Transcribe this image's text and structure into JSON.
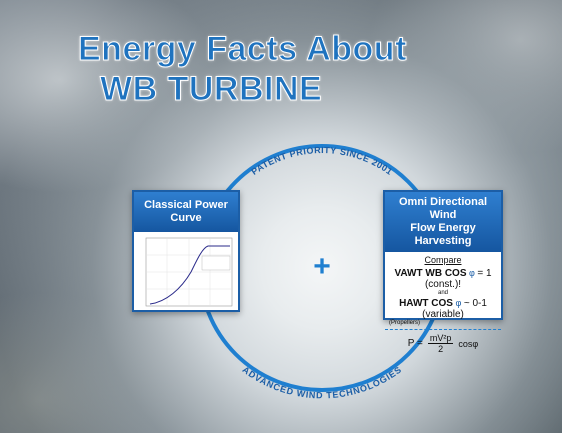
{
  "header": {
    "title_line1": "Energy Facts About",
    "title_line2": "WB TURBINE"
  },
  "circle": {
    "top_text": "PATENT PRIORITY SINCE 2001",
    "bottom_text": "ADVANCED WIND TECHNOLOGIES",
    "center": "+"
  },
  "left_card": {
    "header": "Classical Power Curve"
  },
  "right_card": {
    "header_line1": "Omni Directional Wind",
    "header_line2": "Flow Energy Harvesting",
    "compare": "Compare",
    "vawt_label": "VAWT WB COS",
    "phi": "φ",
    "vawt_value": "= 1 (const.)!",
    "and": "and",
    "hawt_label": "HAWT COS",
    "hawt_value": "~ 0-1 (variable)",
    "propellers": "(Propellers)",
    "formula": {
      "lhs": "P =",
      "numerator": "mV²p",
      "denominator": "2",
      "cos": "cosφ"
    }
  }
}
